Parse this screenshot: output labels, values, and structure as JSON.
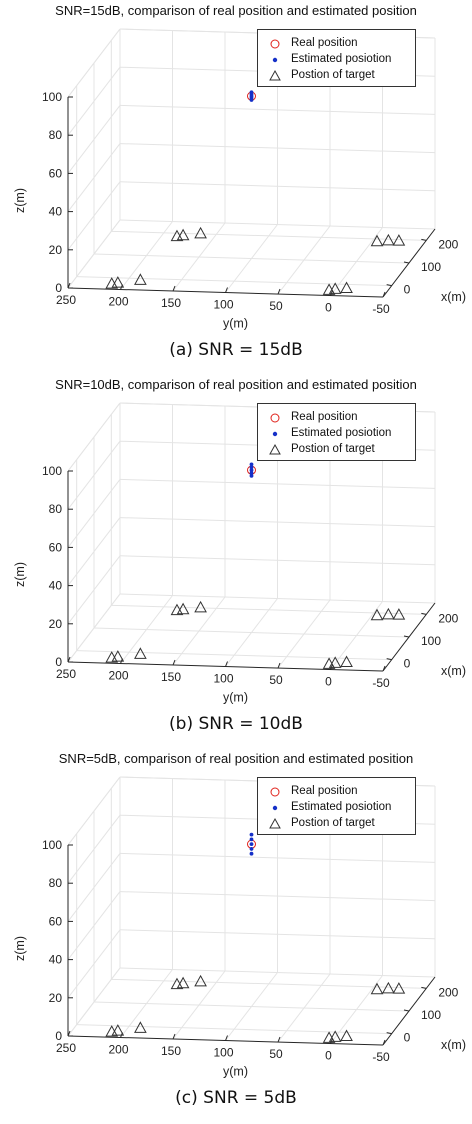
{
  "legend_entries": [
    "Real position",
    "Estimated posiotion",
    "Postion of target"
  ],
  "marker_colors": {
    "real": "#e0211a",
    "estimated": "#1530c8",
    "target": "#333333"
  },
  "chart_data": [
    {
      "type": "scatter",
      "title": "SNR=15dB, comparison of real position and estimated position",
      "caption": "(a) SNR = 15dB",
      "xlabel": "x(m)",
      "ylabel": "y(m)",
      "zlabel": "z(m)",
      "xlim": [
        -50,
        250
      ],
      "ylim": [
        -50,
        250
      ],
      "zlim": [
        0,
        100
      ],
      "x_ticks": [
        "0",
        "100",
        "200"
      ],
      "y_ticks": [
        "250",
        "200",
        "150",
        "100",
        "50",
        "0",
        "-50"
      ],
      "z_ticks": [
        "0",
        "20",
        "40",
        "60",
        "80",
        "100"
      ],
      "series": [
        {
          "name": "Real position",
          "marker": "circle",
          "points": [
            {
              "x": 100,
              "y": 100,
              "z": 85
            }
          ]
        },
        {
          "name": "Estimated posiotion",
          "marker": "dot",
          "points": [
            {
              "x": 100,
              "y": 100,
              "z": 83
            },
            {
              "x": 100,
              "y": 100,
              "z": 84
            },
            {
              "x": 100,
              "y": 100,
              "z": 85
            },
            {
              "x": 100,
              "y": 100,
              "z": 86
            },
            {
              "x": 100,
              "y": 100,
              "z": 87
            }
          ]
        },
        {
          "name": "Postion of target",
          "marker": "triangle",
          "points": [
            {
              "x": -28,
              "y": 212,
              "z": 0
            },
            {
              "x": -23,
              "y": 207,
              "z": 0
            },
            {
              "x": -8,
              "y": 188,
              "z": 0
            },
            {
              "x": 185,
              "y": 185,
              "z": 0
            },
            {
              "x": 190,
              "y": 180,
              "z": 0
            },
            {
              "x": 200,
              "y": 165,
              "z": 0
            },
            {
              "x": -28,
              "y": 5,
              "z": 0
            },
            {
              "x": -23,
              "y": 0,
              "z": 0
            },
            {
              "x": -18,
              "y": -10,
              "z": 0
            },
            {
              "x": 188,
              "y": -5,
              "z": 0
            },
            {
              "x": 193,
              "y": -15,
              "z": 0
            },
            {
              "x": 193,
              "y": -25,
              "z": 0
            }
          ]
        }
      ]
    },
    {
      "type": "scatter",
      "title": "SNR=10dB, comparison of real position and estimated position",
      "caption": "(b) SNR = 10dB",
      "xlabel": "x(m)",
      "ylabel": "y(m)",
      "zlabel": "z(m)",
      "xlim": [
        -50,
        250
      ],
      "ylim": [
        -50,
        250
      ],
      "zlim": [
        0,
        100
      ],
      "x_ticks": [
        "0",
        "100",
        "200"
      ],
      "y_ticks": [
        "250",
        "200",
        "150",
        "100",
        "50",
        "0",
        "-50"
      ],
      "z_ticks": [
        "0",
        "20",
        "40",
        "60",
        "80",
        "100"
      ],
      "series": [
        {
          "name": "Real position",
          "marker": "circle",
          "points": [
            {
              "x": 100,
              "y": 100,
              "z": 85
            }
          ]
        },
        {
          "name": "Estimated posiotion",
          "marker": "dot",
          "points": [
            {
              "x": 100,
              "y": 100,
              "z": 82
            },
            {
              "x": 100,
              "y": 100,
              "z": 83.5
            },
            {
              "x": 100,
              "y": 100,
              "z": 85
            },
            {
              "x": 100,
              "y": 100,
              "z": 86.5
            },
            {
              "x": 100,
              "y": 100,
              "z": 88
            }
          ]
        },
        {
          "name": "Postion of target",
          "marker": "triangle",
          "points": [
            {
              "x": -28,
              "y": 212,
              "z": 0
            },
            {
              "x": -23,
              "y": 207,
              "z": 0
            },
            {
              "x": -8,
              "y": 188,
              "z": 0
            },
            {
              "x": 185,
              "y": 185,
              "z": 0
            },
            {
              "x": 190,
              "y": 180,
              "z": 0
            },
            {
              "x": 200,
              "y": 165,
              "z": 0
            },
            {
              "x": -28,
              "y": 5,
              "z": 0
            },
            {
              "x": -23,
              "y": 0,
              "z": 0
            },
            {
              "x": -18,
              "y": -10,
              "z": 0
            },
            {
              "x": 188,
              "y": -5,
              "z": 0
            },
            {
              "x": 193,
              "y": -15,
              "z": 0
            },
            {
              "x": 193,
              "y": -25,
              "z": 0
            }
          ]
        }
      ]
    },
    {
      "type": "scatter",
      "title": "SNR=5dB, comparison of real position and estimated position",
      "caption": "(c) SNR = 5dB",
      "xlabel": "x(m)",
      "ylabel": "y(m)",
      "zlabel": "z(m)",
      "xlim": [
        -50,
        250
      ],
      "ylim": [
        -50,
        250
      ],
      "zlim": [
        0,
        100
      ],
      "x_ticks": [
        "0",
        "100",
        "200"
      ],
      "y_ticks": [
        "250",
        "200",
        "150",
        "100",
        "50",
        "0",
        "-50"
      ],
      "z_ticks": [
        "0",
        "20",
        "40",
        "60",
        "80",
        "100"
      ],
      "series": [
        {
          "name": "Real position",
          "marker": "circle",
          "points": [
            {
              "x": 100,
              "y": 100,
              "z": 85
            }
          ]
        },
        {
          "name": "Estimated posiotion",
          "marker": "dot",
          "points": [
            {
              "x": 100,
              "y": 100,
              "z": 80
            },
            {
              "x": 100,
              "y": 100,
              "z": 82.5
            },
            {
              "x": 100,
              "y": 100,
              "z": 85
            },
            {
              "x": 100,
              "y": 100,
              "z": 87.5
            },
            {
              "x": 100,
              "y": 100,
              "z": 90
            }
          ]
        },
        {
          "name": "Postion of target",
          "marker": "triangle",
          "points": [
            {
              "x": -28,
              "y": 212,
              "z": 0
            },
            {
              "x": -23,
              "y": 207,
              "z": 0
            },
            {
              "x": -8,
              "y": 188,
              "z": 0
            },
            {
              "x": 185,
              "y": 185,
              "z": 0
            },
            {
              "x": 190,
              "y": 180,
              "z": 0
            },
            {
              "x": 200,
              "y": 165,
              "z": 0
            },
            {
              "x": -28,
              "y": 5,
              "z": 0
            },
            {
              "x": -23,
              "y": 0,
              "z": 0
            },
            {
              "x": -18,
              "y": -10,
              "z": 0
            },
            {
              "x": 188,
              "y": -5,
              "z": 0
            },
            {
              "x": 193,
              "y": -15,
              "z": 0
            },
            {
              "x": 193,
              "y": -25,
              "z": 0
            }
          ]
        }
      ]
    }
  ]
}
